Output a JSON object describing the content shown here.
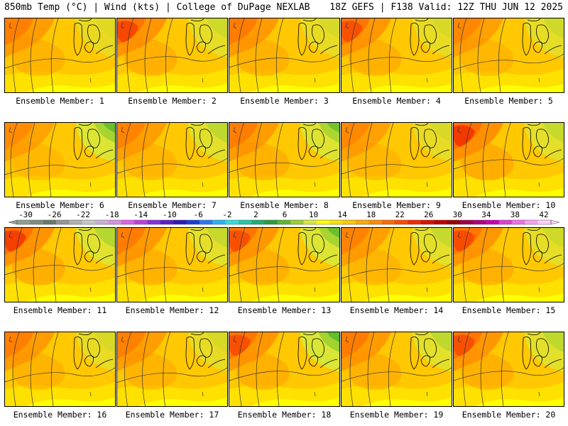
{
  "header": {
    "left_title": "850mb Temp (°C) | Wind (kts) | College of DuPage NEXLAB",
    "right_title": "18Z GEFS | F138 Valid: 12Z THU JUN 12 2025"
  },
  "panel_labels": [
    "Ensemble Member: 1",
    "Ensemble Member: 2",
    "Ensemble Member: 3",
    "Ensemble Member: 4",
    "Ensemble Member: 5",
    "Ensemble Member: 6",
    "Ensemble Member: 7",
    "Ensemble Member: 8",
    "Ensemble Member: 9",
    "Ensemble Member: 10",
    "Ensemble Member: 11",
    "Ensemble Member: 12",
    "Ensemble Member: 13",
    "Ensemble Member: 14",
    "Ensemble Member: 15",
    "Ensemble Member: 16",
    "Ensemble Member: 17",
    "Ensemble Member: 18",
    "Ensemble Member: 19",
    "Ensemble Member: 20"
  ],
  "panel_intensity": [
    0.3,
    0.6,
    0.4,
    0.5,
    0.1,
    0.0,
    0.2,
    0.35,
    0.1,
    0.8,
    0.7,
    0.4,
    0.5,
    0.2,
    0.55,
    0.3,
    0.25,
    0.5,
    0.4,
    0.5
  ],
  "panel_cool": [
    0.1,
    0.3,
    0.2,
    0.2,
    0.3,
    0.8,
    0.5,
    0.7,
    0.2,
    0.4,
    0.6,
    0.4,
    0.8,
    0.4,
    0.3,
    0.2,
    0.2,
    0.9,
    0.5,
    0.5
  ],
  "colorbar": {
    "tick_labels": [
      "-30",
      "-26",
      "-22",
      "-18",
      "-14",
      "-10",
      "-6",
      "-2",
      "2",
      "6",
      "10",
      "14",
      "18",
      "22",
      "26",
      "30",
      "34",
      "38",
      "42"
    ],
    "colors": [
      "#8f9f8f",
      "#7e8c7e",
      "#6b796b",
      "#959595",
      "#b0b0b0",
      "#c8c8c8",
      "#c8b0d8",
      "#d890e0",
      "#e060e8",
      "#c040e0",
      "#8a30d8",
      "#5a20c8",
      "#2f1cb4",
      "#1a3ed8",
      "#2a78f0",
      "#25b4f5",
      "#2fe0e0",
      "#25c8a8",
      "#1cb070",
      "#2a9e3c",
      "#5cb82e",
      "#9ad031",
      "#d8e83a",
      "#ffff00",
      "#ffe100",
      "#ffc800",
      "#ffaa00",
      "#ff8c00",
      "#ff6a00",
      "#ff4a00",
      "#f02a00",
      "#d81400",
      "#c00000",
      "#9c0000",
      "#a0004a",
      "#b00080",
      "#c800b0",
      "#e040d0",
      "#f070e8",
      "#f8a0f0",
      "#ffd0f8"
    ]
  }
}
